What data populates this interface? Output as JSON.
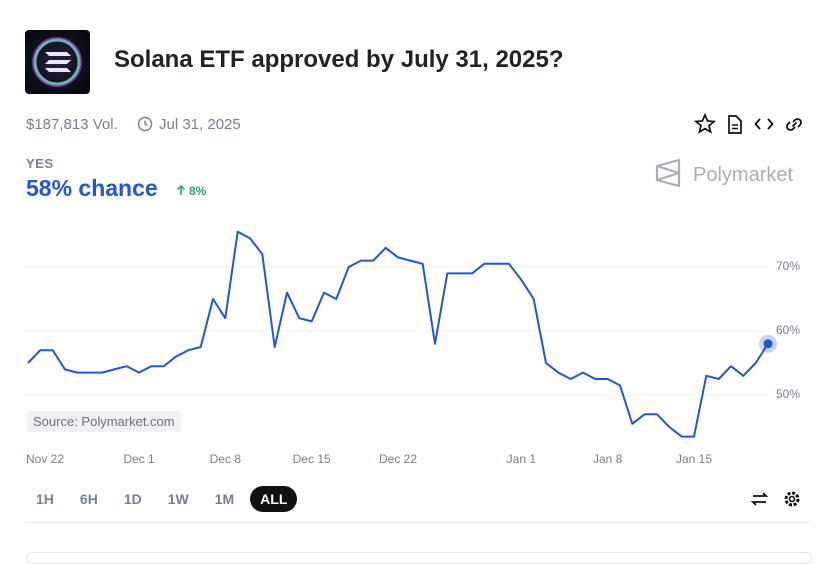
{
  "header": {
    "title": "Solana ETF approved by July 31, 2025?",
    "volume": "$187,813 Vol.",
    "end_date": "Jul 31, 2025"
  },
  "outcome": {
    "label": "YES",
    "chance": "58% chance",
    "change": "8%"
  },
  "brand": "Polymarket",
  "source": "Source: Polymarket.com",
  "range_buttons": [
    "1H",
    "6H",
    "1D",
    "1W",
    "1M",
    "ALL"
  ],
  "chart_data": {
    "type": "line",
    "color": "#2456d4",
    "categories": [
      "Nov 22",
      null,
      null,
      null,
      null,
      null,
      null,
      null,
      null,
      "Dec 1",
      null,
      null,
      null,
      null,
      null,
      null,
      "Dec 8",
      null,
      null,
      null,
      null,
      null,
      null,
      "Dec 15",
      null,
      null,
      null,
      null,
      null,
      null,
      "Dec 22",
      null,
      null,
      null,
      null,
      null,
      null,
      null,
      null,
      null,
      "Jan 1",
      null,
      null,
      null,
      null,
      null,
      null,
      "Jan 8",
      null,
      null,
      null,
      null,
      null,
      null,
      "Jan 15",
      null,
      null,
      null,
      null,
      null,
      null
    ],
    "values": [
      55,
      57,
      57,
      54,
      53.5,
      53.5,
      53.5,
      54,
      54.5,
      53.5,
      54.5,
      54.5,
      56,
      57,
      57.5,
      65,
      62,
      75.5,
      74.5,
      72,
      57.5,
      66,
      62,
      61.5,
      66,
      65,
      70,
      71,
      71,
      73,
      71.5,
      71,
      70.5,
      58,
      69,
      69,
      69,
      70.5,
      70.5,
      70.5,
      68,
      65,
      55,
      53.5,
      52.5,
      53.5,
      52.5,
      52.5,
      51.5,
      45.5,
      47,
      47,
      45,
      43.5,
      43.5,
      53,
      52.5,
      54.5,
      53,
      55,
      58
    ],
    "ylim": [
      42,
      77
    ],
    "yticks": [
      {
        "value": 50,
        "label": "50%"
      },
      {
        "value": 60,
        "label": "60%"
      },
      {
        "value": 70,
        "label": "70%"
      }
    ],
    "grid": true
  }
}
